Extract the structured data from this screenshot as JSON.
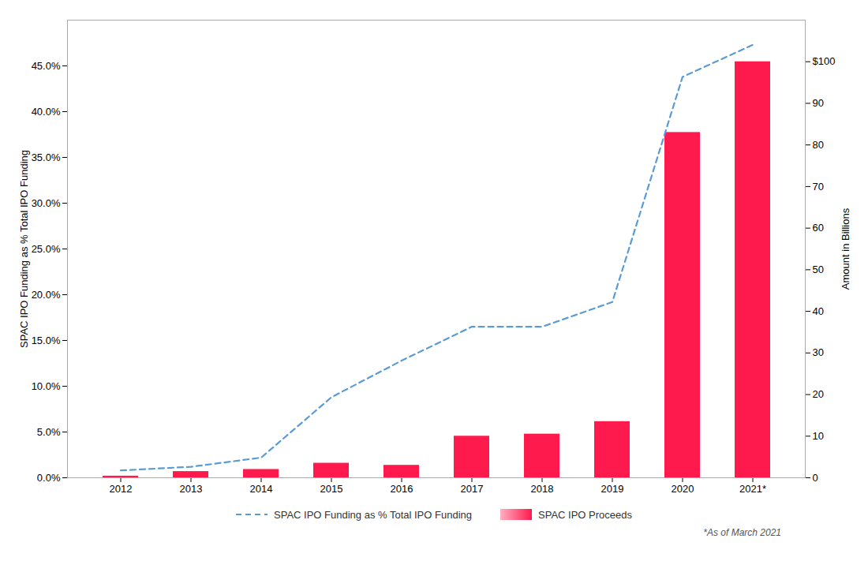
{
  "chart_data": {
    "type": "bar",
    "categories": [
      "2012",
      "2013",
      "2014",
      "2015",
      "2016",
      "2017",
      "2018",
      "2019",
      "2020",
      "2021*"
    ],
    "series": [
      {
        "name": "SPAC IPO Funding as % Total IPO Funding",
        "type": "line",
        "color": "#5b9bd5",
        "line_style": "dashed",
        "values": [
          0.008,
          0.012,
          0.022,
          0.088,
          0.128,
          0.165,
          0.165,
          0.192,
          0.438,
          0.473
        ]
      },
      {
        "name": "SPAC IPO Proceeds",
        "type": "bar",
        "axis": "y2",
        "color": "#ff1a4e",
        "values": [
          0.4,
          1.5,
          2.0,
          3.5,
          3.0,
          10.0,
          10.5,
          13.5,
          83.0,
          100.0
        ]
      }
    ],
    "ylabel": "SPAC IPO Funding as % Total IPO Funding",
    "y2label": "Amount in Billions",
    "ylim": [
      0,
      0.5
    ],
    "yticks": [
      {
        "value": 0.0,
        "label": "0.0%"
      },
      {
        "value": 0.05,
        "label": "5.0%"
      },
      {
        "value": 0.1,
        "label": "10.0%"
      },
      {
        "value": 0.15,
        "label": "15.0%"
      },
      {
        "value": 0.2,
        "label": "20.0%"
      },
      {
        "value": 0.25,
        "label": "25.0%"
      },
      {
        "value": 0.3,
        "label": "30.0%"
      },
      {
        "value": 0.35,
        "label": "35.0%"
      },
      {
        "value": 0.4,
        "label": "40.0%"
      },
      {
        "value": 0.45,
        "label": "45.0%"
      }
    ],
    "y2lim": [
      0,
      110
    ],
    "y2ticks": [
      0,
      10,
      20,
      30,
      40,
      50,
      60,
      70,
      80,
      90,
      {
        "value": 100,
        "label": "$100"
      }
    ],
    "legend": "bottom",
    "grid": false,
    "footnote": "*As of March 2021"
  }
}
